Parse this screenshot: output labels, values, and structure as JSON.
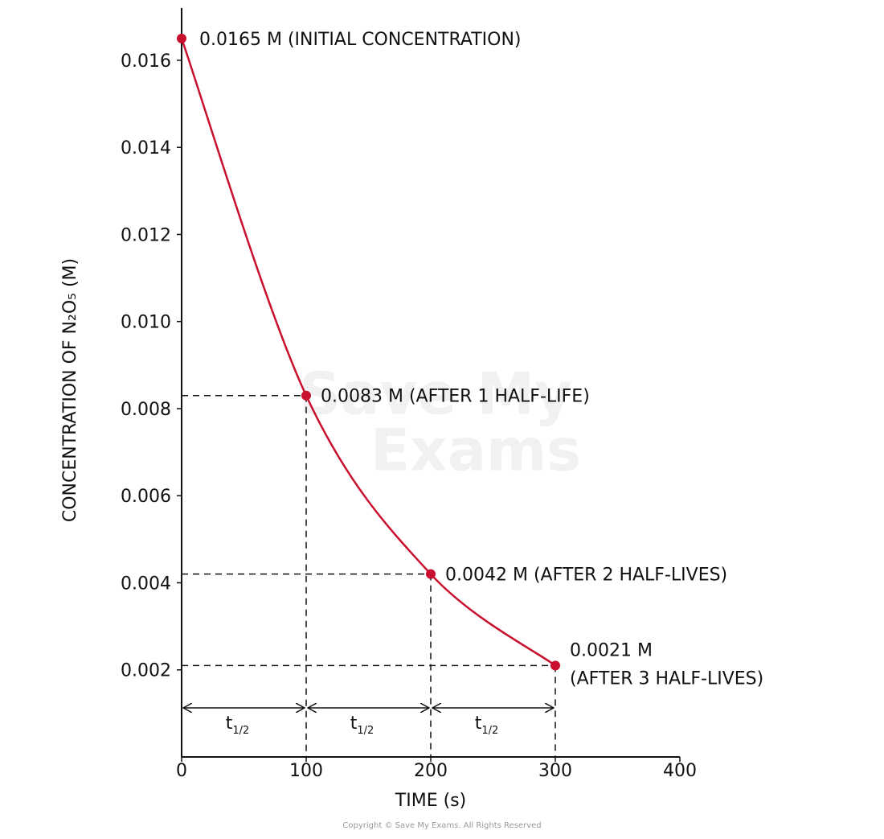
{
  "chart_data": {
    "type": "line",
    "x_label": "TIME (s)",
    "y_label": "CONCENTRATION OF N₂O₅ (M)",
    "x": [
      0,
      100,
      200,
      300
    ],
    "series": [
      {
        "color": "#c8102e",
        "values": [
          0.0165,
          0.0083,
          0.0042,
          0.0021
        ]
      }
    ],
    "point_labels": [
      [
        "0.0165 M (INITIAL  CONCENTRATION)"
      ],
      [
        "0.0083 M (AFTER 1 HALF-LIFE)"
      ],
      [
        "0.0042 M (AFTER 2 HALF-LIVES)"
      ],
      [
        "0.0021 M",
        "(AFTER 3 HALF-LIVES)"
      ]
    ],
    "half_life_labels": [
      {
        "main": "t",
        "sub": "1/2"
      },
      {
        "main": "t",
        "sub": "1/2"
      },
      {
        "main": "t",
        "sub": "1/2"
      }
    ],
    "xlim": [
      0,
      400
    ],
    "ylim": [
      0,
      0.0172
    ],
    "xticks": [
      0,
      100,
      200,
      300,
      400
    ],
    "yticks": [
      0.002,
      0.004,
      0.006,
      0.008,
      {
        "value": 0.01,
        "label": "0.010"
      },
      0.012,
      0.014,
      0.016
    ],
    "watermark": [
      "Save My",
      "Exams"
    ],
    "copyright": "Copyright © Save My Exams. All Rights Reserved"
  }
}
